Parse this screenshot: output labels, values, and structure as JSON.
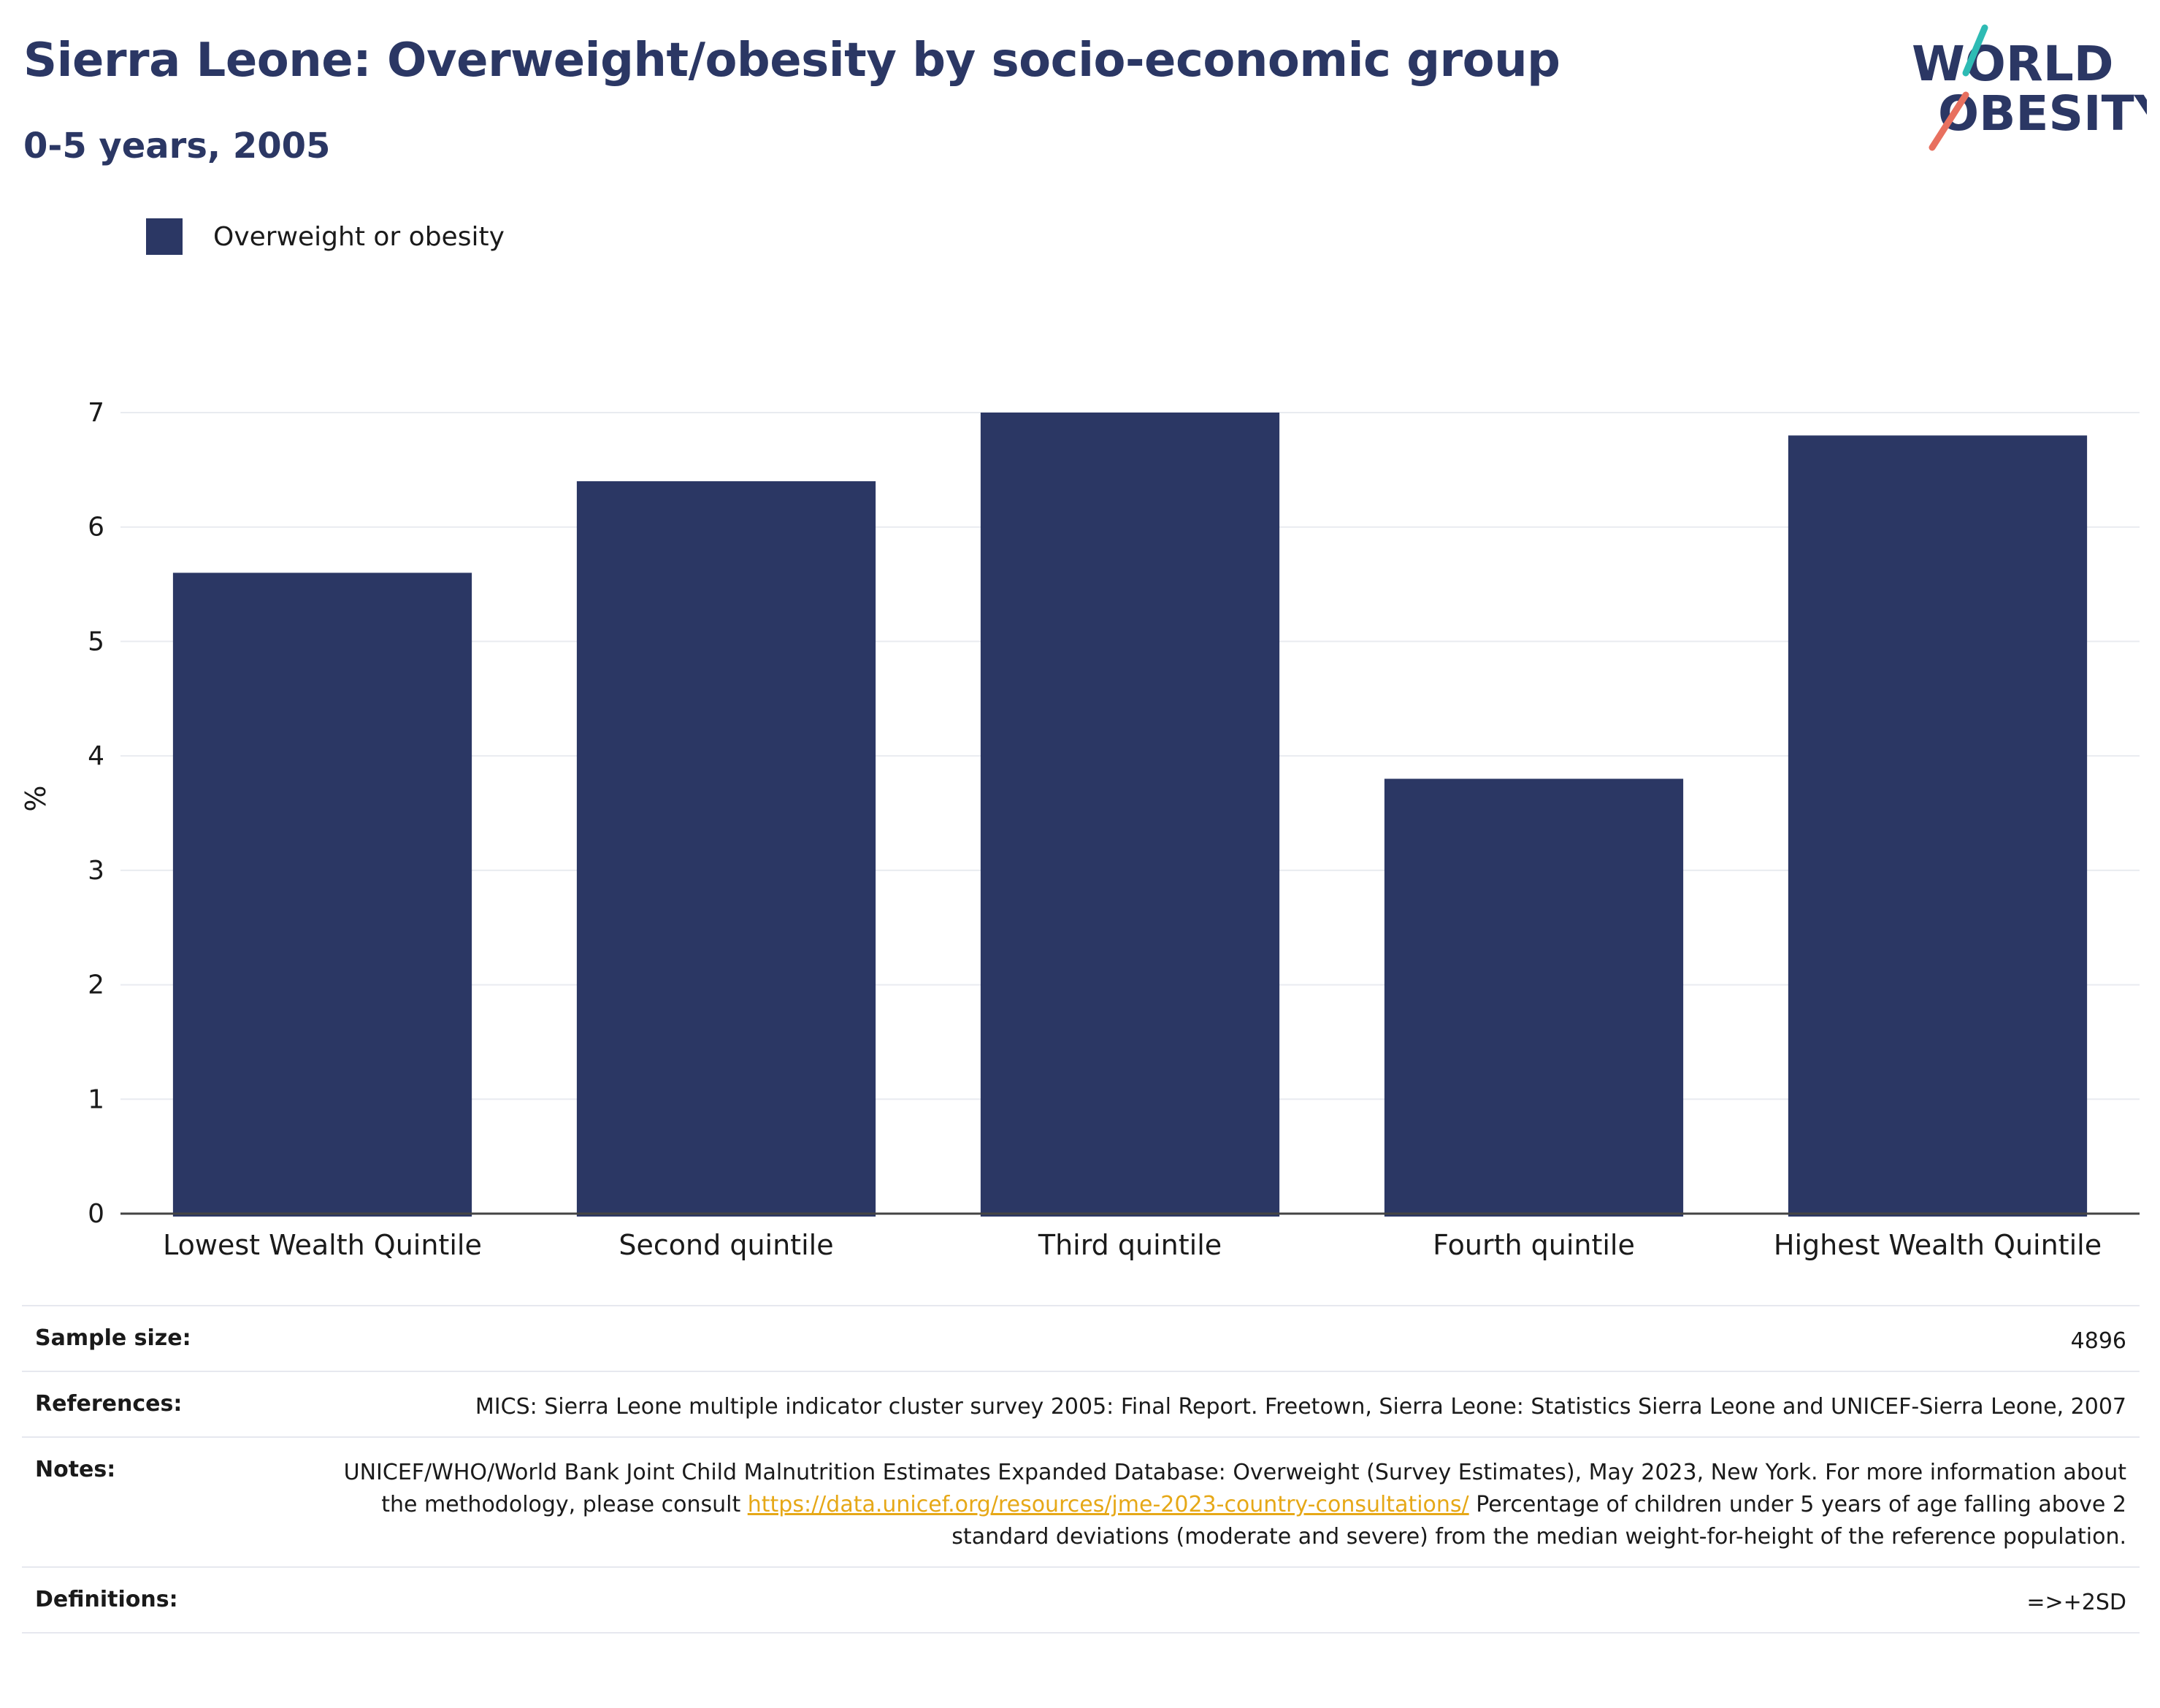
{
  "header": {
    "title": "Sierra Leone: Overweight/obesity by socio-economic group",
    "subtitle": "0-5 years, 2005"
  },
  "logo": {
    "line1": "WORLD",
    "line2": "OBESITY"
  },
  "colors": {
    "bar": "#2b3764",
    "accent_teal": "#2ebbb4",
    "accent_coral": "#e8705f",
    "link": "#e6a817"
  },
  "chart_data": {
    "type": "bar",
    "categories": [
      "Lowest Wealth Quintile",
      "Second quintile",
      "Third quintile",
      "Fourth quintile",
      "Highest Wealth Quintile"
    ],
    "series": [
      {
        "name": "Overweight or obesity",
        "values": [
          5.6,
          6.4,
          7.0,
          3.8,
          6.8
        ]
      }
    ],
    "ylabel": "%",
    "xlabel": "",
    "ylim": [
      0,
      7
    ],
    "yticks": [
      0,
      1,
      2,
      3,
      4,
      5,
      6,
      7
    ],
    "grid": true,
    "legend_position": "top-left"
  },
  "info": {
    "sample_size": {
      "label": "Sample size:",
      "value": "4896"
    },
    "references": {
      "label": "References:",
      "value": "MICS: Sierra Leone multiple indicator cluster survey 2005: Final Report. Freetown, Sierra Leone: Statistics Sierra Leone and UNICEF-Sierra Leone, 2007"
    },
    "notes": {
      "label": "Notes:",
      "text_before": "UNICEF/WHO/World Bank Joint Child Malnutrition Estimates Expanded Database: Overweight (Survey Estimates), May 2023, New York. For more information about the methodology, please consult ",
      "link": "https://data.unicef.org/resources/jme-2023-country-consultations/",
      "text_after": " Percentage of children under 5 years of age falling above 2 standard deviations (moderate and severe) from the median weight-for-height of the reference population."
    },
    "definitions": {
      "label": "Definitions:",
      "value": "=>+2SD"
    }
  }
}
